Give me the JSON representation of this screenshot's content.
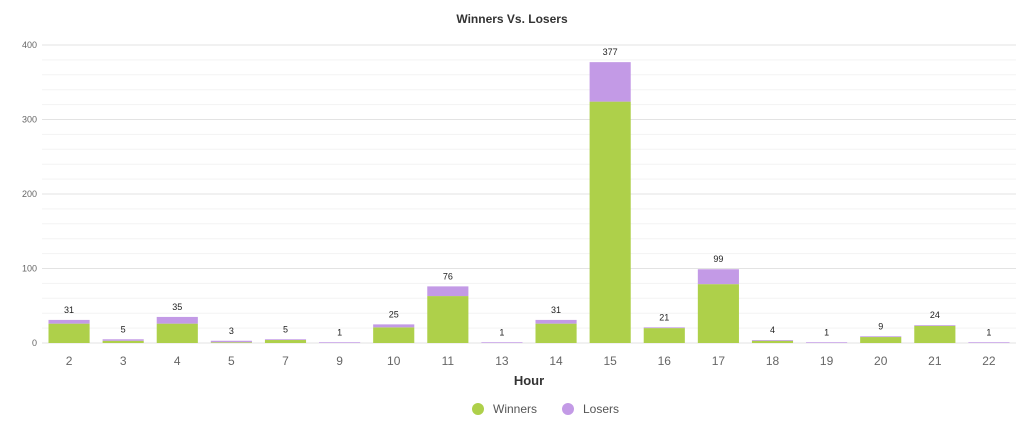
{
  "chart_data": {
    "type": "bar",
    "stacked": true,
    "title": "Winners Vs. Losers",
    "xlabel": "Hour",
    "ylabel": "",
    "ylim": [
      0,
      400
    ],
    "yticks": [
      0,
      100,
      200,
      300,
      400
    ],
    "grid": true,
    "legend_position": "bottom-center",
    "categories": [
      "2",
      "3",
      "4",
      "5",
      "7",
      "9",
      "10",
      "11",
      "13",
      "14",
      "15",
      "16",
      "17",
      "18",
      "19",
      "20",
      "21",
      "22"
    ],
    "series": [
      {
        "name": "Winners",
        "color": "#aed04a",
        "values": [
          26,
          3,
          26,
          1,
          4,
          0,
          21,
          63,
          0,
          26,
          324,
          20,
          79,
          3,
          0,
          8,
          23,
          0
        ]
      },
      {
        "name": "Losers",
        "color": "#c39ae6",
        "values": [
          5,
          2,
          9,
          2,
          1,
          1,
          4,
          13,
          1,
          5,
          53,
          1,
          20,
          1,
          1,
          1,
          1,
          1
        ]
      }
    ],
    "totals": [
      31,
      5,
      35,
      3,
      5,
      1,
      25,
      76,
      1,
      31,
      377,
      21,
      99,
      4,
      1,
      9,
      24,
      1
    ]
  }
}
